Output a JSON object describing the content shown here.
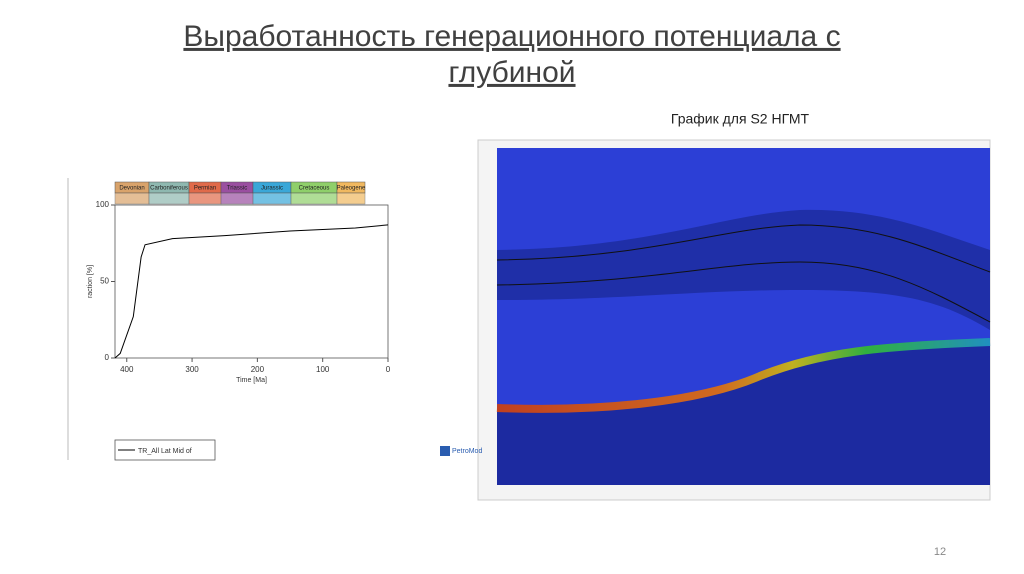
{
  "title_line1": "Выработанность генерационного потенциала с",
  "title_line2": "глубиной",
  "caption": "График для S2 НГМТ",
  "logo": "PetroMod",
  "page_number": "12",
  "chart_data": {
    "type": "line",
    "xlabel": "Time [Ma]",
    "ylabel": "raction [%]",
    "periods": [
      {
        "name": "Devonian",
        "color": "#d9a36b"
      },
      {
        "name": "Carboniferous",
        "color": "#8fb8b0"
      },
      {
        "name": "Permian",
        "color": "#e06a4a"
      },
      {
        "name": "Triassic",
        "color": "#9a4fa0"
      },
      {
        "name": "Jurassic",
        "color": "#3aa7d8"
      },
      {
        "name": "Cretaceous",
        "color": "#8fcf6a"
      },
      {
        "name": "Paleogene",
        "color": "#f0b860"
      }
    ],
    "x": [
      418,
      410,
      390,
      378,
      372,
      330,
      250,
      150,
      50,
      0
    ],
    "series": [
      {
        "name": "TR_All Lat Mid of",
        "color": "#000000",
        "values": [
          0,
          3,
          27,
          66,
          74,
          78,
          80,
          83,
          85,
          87
        ]
      }
    ],
    "xlim": [
      418,
      0
    ],
    "xticks": [
      400,
      300,
      200,
      100,
      0
    ],
    "ylim": [
      0,
      100
    ],
    "yticks": [
      0,
      50,
      100
    ]
  }
}
